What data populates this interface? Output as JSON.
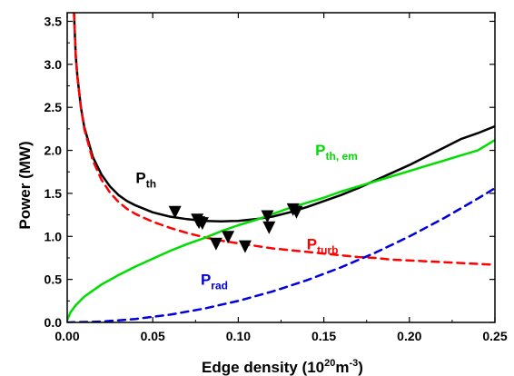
{
  "chart_data": {
    "type": "line",
    "xlabel": "Edge density (10",
    "xlabel_sup": "20",
    "xlabel_unit": "m",
    "xlabel_unit_sup": "-3",
    "xlabel_end": ")",
    "ylabel": "Power (MW)",
    "xlim": [
      0.0,
      0.25
    ],
    "ylim": [
      0.0,
      3.6
    ],
    "x_ticks": [
      "0.00",
      "0.05",
      "0.10",
      "0.15",
      "0.20",
      "0.25"
    ],
    "y_ticks": [
      "0.0",
      "0.5",
      "1.0",
      "1.5",
      "2.0",
      "2.5",
      "3.0",
      "3.5"
    ],
    "x_tick_values": [
      0.0,
      0.05,
      0.1,
      0.15,
      0.2,
      0.25
    ],
    "y_tick_values": [
      0.0,
      0.5,
      1.0,
      1.5,
      2.0,
      2.5,
      3.0,
      3.5
    ],
    "series": [
      {
        "label_main": "P",
        "label_sub": "th",
        "color": "#000000",
        "style": "solid",
        "label_pos": [
          0.04,
          1.62
        ],
        "x": [
          0.004,
          0.005,
          0.006,
          0.008,
          0.01,
          0.015,
          0.02,
          0.025,
          0.03,
          0.035,
          0.04,
          0.05,
          0.06,
          0.07,
          0.08,
          0.09,
          0.1,
          0.11,
          0.12,
          0.13,
          0.14,
          0.15,
          0.16,
          0.17,
          0.18,
          0.19,
          0.2,
          0.21,
          0.22,
          0.23,
          0.24,
          0.25
        ],
        "y": [
          3.6,
          3.1,
          2.85,
          2.5,
          2.27,
          1.92,
          1.72,
          1.58,
          1.48,
          1.41,
          1.36,
          1.28,
          1.23,
          1.2,
          1.18,
          1.175,
          1.18,
          1.2,
          1.23,
          1.28,
          1.34,
          1.41,
          1.48,
          1.56,
          1.65,
          1.74,
          1.83,
          1.93,
          2.03,
          2.13,
          2.2,
          2.28
        ]
      },
      {
        "label_main": "P",
        "label_sub": "turb",
        "color": "#ff0000",
        "style": "dashed",
        "label_pos": [
          0.14,
          0.85
        ],
        "x": [
          0.004,
          0.005,
          0.006,
          0.008,
          0.01,
          0.015,
          0.02,
          0.025,
          0.03,
          0.035,
          0.04,
          0.05,
          0.06,
          0.07,
          0.08,
          0.09,
          0.1,
          0.11,
          0.12,
          0.13,
          0.14,
          0.15,
          0.16,
          0.17,
          0.18,
          0.19,
          0.2,
          0.21,
          0.22,
          0.23,
          0.24,
          0.25
        ],
        "y": [
          3.6,
          3.1,
          2.85,
          2.5,
          2.25,
          1.88,
          1.66,
          1.51,
          1.4,
          1.32,
          1.26,
          1.17,
          1.1,
          1.04,
          0.99,
          0.95,
          0.92,
          0.89,
          0.86,
          0.84,
          0.82,
          0.8,
          0.78,
          0.76,
          0.75,
          0.73,
          0.72,
          0.71,
          0.7,
          0.69,
          0.68,
          0.67
        ]
      },
      {
        "label_main": "P",
        "label_sub": "th, em",
        "color": "#00dd00",
        "style": "solid",
        "label_pos": [
          0.145,
          1.94
        ],
        "x": [
          0.0,
          0.002,
          0.005,
          0.01,
          0.02,
          0.03,
          0.04,
          0.05,
          0.06,
          0.07,
          0.08,
          0.09,
          0.1,
          0.11,
          0.12,
          0.13,
          0.14,
          0.15,
          0.16,
          0.17,
          0.18,
          0.19,
          0.2,
          0.21,
          0.22,
          0.23,
          0.24,
          0.25
        ],
        "y": [
          0.03,
          0.12,
          0.2,
          0.3,
          0.44,
          0.55,
          0.65,
          0.74,
          0.83,
          0.91,
          0.98,
          1.06,
          1.13,
          1.19,
          1.26,
          1.33,
          1.39,
          1.45,
          1.52,
          1.58,
          1.64,
          1.7,
          1.76,
          1.82,
          1.88,
          1.94,
          2.0,
          2.12
        ]
      },
      {
        "label_main": "P",
        "label_sub": "rad",
        "color": "#0000dd",
        "style": "dashed",
        "label_pos": [
          0.078,
          0.44
        ],
        "x": [
          0.0,
          0.02,
          0.04,
          0.06,
          0.08,
          0.1,
          0.12,
          0.14,
          0.16,
          0.18,
          0.2,
          0.22,
          0.24,
          0.25
        ],
        "y": [
          0.0,
          0.01,
          0.04,
          0.09,
          0.16,
          0.25,
          0.36,
          0.49,
          0.64,
          0.81,
          1.0,
          1.21,
          1.44,
          1.56
        ]
      }
    ],
    "markers": {
      "shape": "down-triangle",
      "color": "#000000",
      "x": [
        0.063,
        0.076,
        0.077,
        0.079,
        0.087,
        0.094,
        0.104,
        0.117,
        0.118,
        0.132,
        0.134
      ],
      "y": [
        1.28,
        1.19,
        1.16,
        1.15,
        0.91,
        0.99,
        0.88,
        1.23,
        1.1,
        1.31,
        1.28
      ]
    }
  }
}
